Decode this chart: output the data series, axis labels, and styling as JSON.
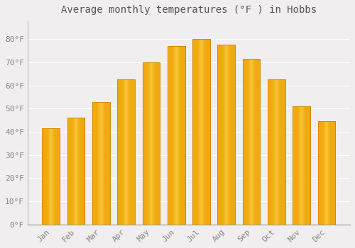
{
  "title": "Average monthly temperatures (°F ) in Hobbs",
  "months": [
    "Jan",
    "Feb",
    "Mar",
    "Apr",
    "May",
    "Jun",
    "Jul",
    "Aug",
    "Sep",
    "Oct",
    "Nov",
    "Dec"
  ],
  "values": [
    41.5,
    46,
    53,
    62.5,
    70,
    77,
    80,
    77.5,
    71.5,
    62.5,
    51,
    44.5
  ],
  "bar_color_edge": "#E8960A",
  "bar_color_center": "#FFD966",
  "bar_color_main": "#FFA500",
  "background_color": "#f0eeee",
  "plot_bg_color": "#f0eeee",
  "grid_color": "#ffffff",
  "ylim": [
    0,
    88
  ],
  "yticks": [
    0,
    10,
    20,
    30,
    40,
    50,
    60,
    70,
    80
  ],
  "ytick_labels": [
    "0°F",
    "10°F",
    "20°F",
    "30°F",
    "40°F",
    "50°F",
    "60°F",
    "70°F",
    "80°F"
  ],
  "title_fontsize": 10,
  "tick_fontsize": 8,
  "tick_color": "#888888",
  "font_family": "monospace"
}
